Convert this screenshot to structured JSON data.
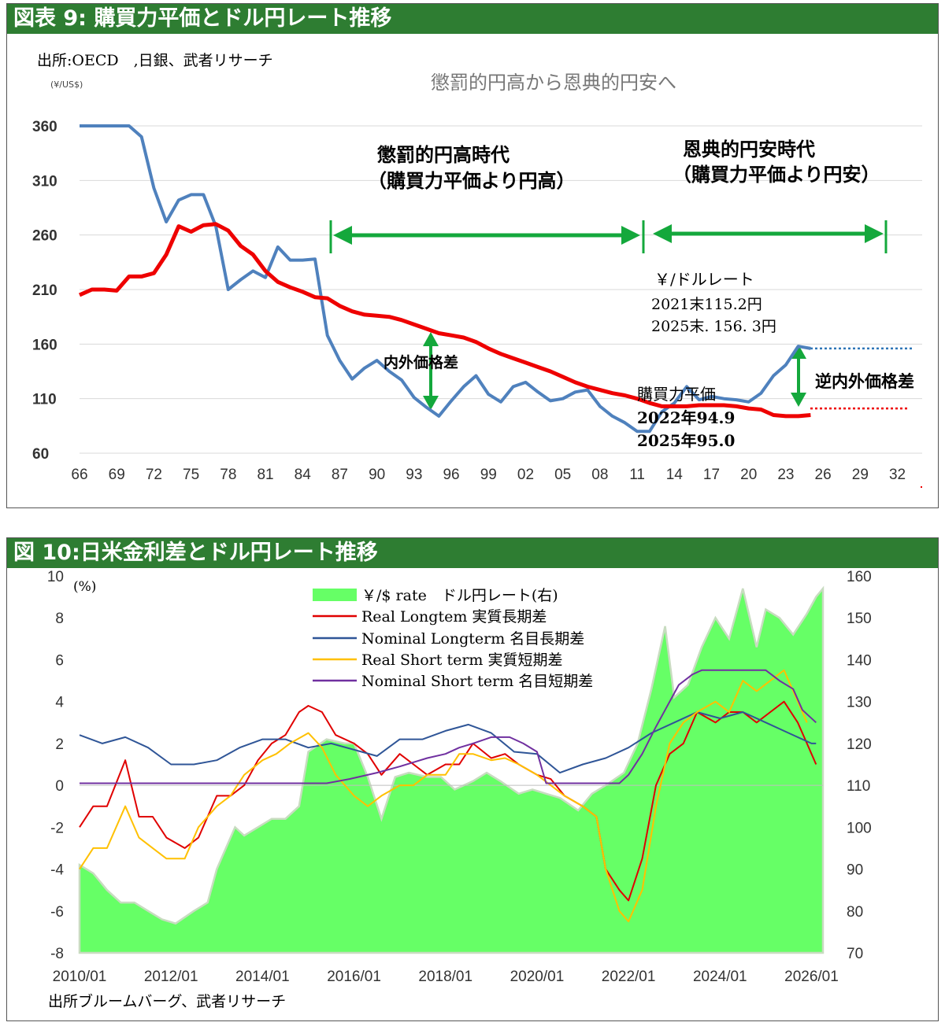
{
  "chart1": {
    "header": "図表 9: 購買力平価とドル円レート推移",
    "source": "出所:OECD　,日銀、武者リサーチ",
    "unit": "(¥/US$)",
    "subtitle": "懲罰的円高から恩典的円安へ",
    "era1_label_1": "懲罰的円高時代",
    "era1_label_2": "（購買力平価より円高）",
    "era2_label_1": "恩典的円安時代",
    "era2_label_2": "（購買力平価より円安）",
    "rate_note_1": "￥/ドルレート",
    "rate_note_2": "2021末115.2円",
    "rate_note_3": "2025末. 156. 3円",
    "gap_label": "内外価格差",
    "reverse_gap_label": "逆内外価格差",
    "ppp_note_1": "購買力平価",
    "ppp_note_2": "2022年94.9",
    "ppp_note_3": "2025年95.0",
    "colors": {
      "rate": "#4f81bd",
      "ppp": "#ee0000",
      "arrow": "#14a83c",
      "header": "#2e7d32"
    },
    "chart_data": {
      "type": "line",
      "ylim": [
        60,
        360
      ],
      "yticks": [
        60,
        110,
        160,
        210,
        260,
        310,
        360
      ],
      "xlim": [
        1966,
        2034
      ],
      "xticks": [
        "66",
        "69",
        "72",
        "75",
        "78",
        "81",
        "84",
        "87",
        "90",
        "93",
        "96",
        "99",
        "02",
        "05",
        "08",
        "11",
        "14",
        "17",
        "20",
        "23",
        "26",
        "29",
        "32"
      ],
      "series": [
        {
          "key": "rate",
          "x": [
            1966,
            1970,
            1971,
            1972,
            1973,
            1974,
            1975,
            1976,
            1977,
            1978,
            1979,
            1980,
            1981,
            1982,
            1983,
            1984,
            1985,
            1986,
            1987,
            1988,
            1989,
            1990,
            1991,
            1992,
            1993,
            1994,
            1995,
            1996,
            1997,
            1998,
            1999,
            2000,
            2001,
            2002,
            2003,
            2004,
            2005,
            2006,
            2007,
            2008,
            2009,
            2010,
            2011,
            2012,
            2013,
            2014,
            2015,
            2016,
            2017,
            2018,
            2019,
            2020,
            2021,
            2022,
            2023,
            2024,
            2025
          ],
          "y": [
            360,
            360,
            350,
            303,
            272,
            292,
            297,
            297,
            268,
            210,
            219,
            227,
            221,
            249,
            237,
            237,
            238,
            168,
            145,
            128,
            138,
            145,
            135,
            127,
            111,
            102,
            94,
            108,
            121,
            131,
            114,
            107,
            121,
            125,
            116,
            108,
            110,
            116,
            118,
            103,
            94,
            88,
            80,
            80,
            98,
            106,
            121,
            109,
            112,
            110,
            109,
            107,
            115,
            131,
            141,
            158,
            156
          ]
        },
        {
          "key": "ppp",
          "x": [
            1966,
            1967,
            1968,
            1969,
            1970,
            1971,
            1972,
            1973,
            1974,
            1975,
            1976,
            1977,
            1978,
            1979,
            1980,
            1981,
            1982,
            1983,
            1984,
            1985,
            1986,
            1987,
            1988,
            1989,
            1990,
            1991,
            1992,
            1993,
            1994,
            1995,
            1996,
            1997,
            1998,
            1999,
            2000,
            2001,
            2002,
            2003,
            2004,
            2005,
            2006,
            2007,
            2008,
            2009,
            2010,
            2011,
            2012,
            2013,
            2014,
            2015,
            2016,
            2017,
            2018,
            2019,
            2020,
            2021,
            2022,
            2023,
            2024,
            2025
          ],
          "y": [
            205,
            210,
            210,
            209,
            222,
            222,
            225,
            242,
            268,
            263,
            269,
            270,
            264,
            250,
            242,
            227,
            217,
            212,
            208,
            203,
            202,
            195,
            190,
            187,
            186,
            185,
            182,
            178,
            174,
            170,
            168,
            166,
            162,
            156,
            151,
            147,
            143,
            139,
            135,
            130,
            125,
            121,
            118,
            115,
            113,
            110,
            106,
            103,
            103,
            103,
            104,
            104,
            104,
            103,
            101,
            100,
            95,
            94,
            94,
            95
          ]
        }
      ]
    }
  },
  "chart2": {
    "header": "図 10:日米金利差とドル円レート推移",
    "unit": "(%)",
    "source": "出所ブルームバーグ、武者リサーチ",
    "legend": {
      "fx": "￥/$ rate　ドル円レート(右)",
      "real_long": "Real Longtem 実質長期差",
      "nominal_long": "Nominal Longterm 名目長期差",
      "real_short": "Real  Short term 実質短期差",
      "nominal_short": "Nominal Short term 名目短期差"
    },
    "colors": {
      "fx": "#66ff66",
      "real_long": "#e00000",
      "nominal_long": "#2f5597",
      "real_short": "#ffc000",
      "nominal_short": "#7030a0"
    },
    "chart_data": {
      "type": "line",
      "ylim_left": [
        -8,
        10
      ],
      "yticks_left": [
        -8,
        -6,
        -4,
        -2,
        0,
        2,
        4,
        6,
        8,
        10
      ],
      "ylim_right": [
        70,
        160
      ],
      "yticks_right": [
        70,
        80,
        90,
        100,
        110,
        120,
        130,
        140,
        150,
        160
      ],
      "xlim": [
        2010,
        2026.25
      ],
      "xticks": [
        "2010/01",
        "2012/01",
        "2014/01",
        "2016/01",
        "2018/01",
        "2020/01",
        "2022/01",
        "2024/01",
        "2026/01"
      ],
      "series": [
        {
          "key": "fx",
          "axis": "right",
          "x": [
            2010,
            2010.3,
            2010.6,
            2010.9,
            2011.2,
            2011.5,
            2011.8,
            2012.1,
            2012.5,
            2012.8,
            2013.0,
            2013.2,
            2013.4,
            2013.6,
            2013.9,
            2014.2,
            2014.5,
            2014.8,
            2015.0,
            2015.4,
            2015.8,
            2016.0,
            2016.3,
            2016.6,
            2016.9,
            2017.2,
            2017.6,
            2017.9,
            2018.2,
            2018.6,
            2018.9,
            2019.2,
            2019.6,
            2019.9,
            2020.2,
            2020.5,
            2020.9,
            2021.2,
            2021.5,
            2021.9,
            2022.2,
            2022.5,
            2022.8,
            2023.0,
            2023.3,
            2023.6,
            2023.9,
            2024.2,
            2024.5,
            2024.8,
            2025.0,
            2025.3,
            2025.6,
            2025.9,
            2026.1,
            2026.25
          ],
          "y": [
            91,
            89,
            85,
            82,
            82,
            80,
            78,
            77,
            80,
            82,
            90,
            95,
            100,
            98,
            100,
            102,
            102,
            105,
            118,
            121,
            120,
            120,
            112,
            102,
            112,
            113,
            112,
            112,
            109,
            111,
            113,
            111,
            108,
            109,
            108,
            107,
            104,
            108,
            110,
            113,
            120,
            133,
            148,
            131,
            134,
            143,
            150,
            145,
            157,
            143,
            152,
            150,
            146,
            151,
            155,
            157
          ]
        },
        {
          "key": "real_long",
          "axis": "left",
          "x": [
            2010,
            2010.3,
            2010.6,
            2011.0,
            2011.3,
            2011.6,
            2011.9,
            2012.3,
            2012.6,
            2013.0,
            2013.3,
            2013.6,
            2013.9,
            2014.2,
            2014.5,
            2014.8,
            2015.0,
            2015.3,
            2015.6,
            2016.0,
            2016.3,
            2016.6,
            2017.0,
            2017.3,
            2017.6,
            2018.0,
            2018.3,
            2018.6,
            2019.0,
            2019.3,
            2019.6,
            2020.0,
            2020.3,
            2020.6,
            2021.0,
            2021.3,
            2021.5,
            2021.8,
            2022.0,
            2022.3,
            2022.6,
            2022.9,
            2023.2,
            2023.5,
            2023.9,
            2024.2,
            2024.5,
            2024.8,
            2025.1,
            2025.4,
            2025.7,
            2025.9,
            2026.1
          ],
          "y": [
            -2,
            -1,
            -1,
            1.2,
            -1.5,
            -1.5,
            -2.5,
            -3,
            -2.5,
            -0.5,
            -0.5,
            0,
            1.2,
            2,
            2.4,
            3.5,
            3.8,
            3.5,
            2.4,
            2,
            1.5,
            0.5,
            1.5,
            1,
            0.5,
            1,
            1,
            2,
            1.3,
            1.5,
            1,
            0.5,
            0.3,
            -0.5,
            -1,
            -1.5,
            -4,
            -5,
            -5.5,
            -3.5,
            0,
            1.5,
            2,
            3.5,
            3,
            3.5,
            3.5,
            3,
            3.5,
            4,
            3,
            2,
            1
          ]
        },
        {
          "key": "nominal_long",
          "axis": "left",
          "x": [
            2010,
            2010.5,
            2011.0,
            2011.5,
            2012.0,
            2012.5,
            2013.0,
            2013.5,
            2014.0,
            2014.5,
            2015.0,
            2015.5,
            2016.0,
            2016.5,
            2017.0,
            2017.5,
            2018.0,
            2018.5,
            2019.0,
            2019.5,
            2020.0,
            2020.5,
            2021.0,
            2021.5,
            2022.0,
            2022.5,
            2023.0,
            2023.5,
            2024.0,
            2024.5,
            2025.0,
            2025.5,
            2026.0,
            2026.1
          ],
          "y": [
            2.4,
            2,
            2.3,
            1.8,
            1,
            1,
            1.2,
            1.8,
            2.2,
            2.2,
            1.8,
            2,
            1.7,
            1.4,
            2.2,
            2.2,
            2.6,
            2.9,
            2.5,
            1.6,
            1.5,
            0.6,
            1,
            1.3,
            1.8,
            2.5,
            3,
            3.5,
            3.2,
            3.5,
            3,
            2.5,
            2,
            2
          ]
        },
        {
          "key": "real_short",
          "axis": "left",
          "x": [
            2010,
            2010.3,
            2010.6,
            2011.0,
            2011.3,
            2011.6,
            2011.9,
            2012.3,
            2012.6,
            2013.0,
            2013.3,
            2013.6,
            2014.0,
            2014.3,
            2014.6,
            2015.0,
            2015.3,
            2015.6,
            2016.0,
            2016.3,
            2016.6,
            2017.0,
            2017.3,
            2017.6,
            2018.0,
            2018.3,
            2018.6,
            2019.0,
            2019.3,
            2019.6,
            2020.0,
            2020.3,
            2020.6,
            2021.0,
            2021.3,
            2021.5,
            2021.8,
            2022.0,
            2022.3,
            2022.6,
            2022.9,
            2023.2,
            2023.5,
            2023.9,
            2024.2,
            2024.5,
            2024.8,
            2025.1,
            2025.4,
            2025.7,
            2025.9
          ],
          "y": [
            -4,
            -3,
            -3,
            -1,
            -2.5,
            -3,
            -3.5,
            -3.5,
            -2,
            -1,
            -0.5,
            0.5,
            1.2,
            1.5,
            2,
            2.5,
            1.8,
            0.5,
            -0.5,
            -1,
            -0.5,
            0,
            0,
            0.5,
            0.5,
            1.5,
            1.5,
            1.2,
            1.3,
            1,
            0.5,
            0,
            -0.5,
            -1,
            -1.5,
            -4,
            -6,
            -6.5,
            -5,
            -1,
            2,
            3,
            3.5,
            4,
            3.5,
            5,
            4.5,
            5,
            5.5,
            4,
            3
          ]
        },
        {
          "key": "nominal_short",
          "axis": "left",
          "x": [
            2010,
            2015.4,
            2015.9,
            2016.5,
            2017.0,
            2017.3,
            2017.6,
            2018.0,
            2018.3,
            2018.6,
            2019.0,
            2019.4,
            2019.7,
            2020.0,
            2020.2,
            2021.8,
            2022.0,
            2022.3,
            2022.6,
            2022.9,
            2023.1,
            2023.4,
            2023.6,
            2025.0,
            2025.3,
            2025.6,
            2025.8,
            2026.1
          ],
          "y": [
            0.1,
            0.1,
            0.3,
            0.6,
            0.9,
            1.1,
            1.3,
            1.5,
            1.8,
            2.0,
            2.3,
            2.3,
            2.0,
            1.6,
            0.1,
            0.1,
            0.5,
            1.5,
            2.8,
            4.0,
            4.8,
            5.3,
            5.5,
            5.5,
            5.0,
            4.6,
            3.6,
            3.0
          ]
        }
      ]
    }
  }
}
